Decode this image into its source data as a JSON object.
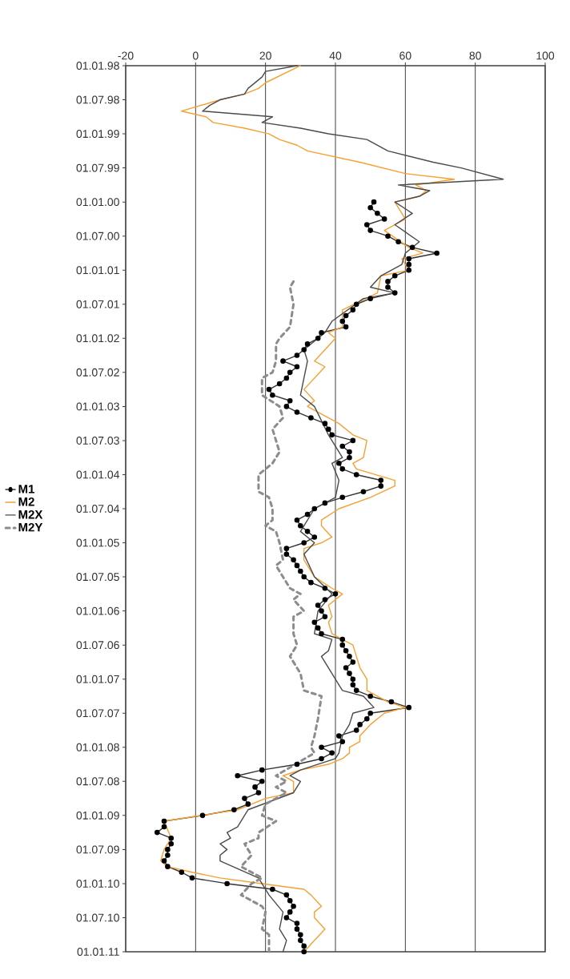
{
  "chart_data": {
    "type": "line",
    "x": [
      "2000-01",
      "2000-02",
      "2000-03",
      "2000-04",
      "2000-05",
      "2000-06",
      "2000-07",
      "2000-08",
      "2000-09",
      "2000-10",
      "2000-11",
      "2000-12",
      "2001-01",
      "2001-02",
      "2001-03",
      "2001-04",
      "2001-05",
      "2001-06",
      "2001-07",
      "2001-08",
      "2001-09",
      "2001-10",
      "2001-11",
      "2001-12",
      "2002-01",
      "2002-02",
      "2002-03",
      "2002-04",
      "2002-05",
      "2002-06",
      "2002-07",
      "2002-08",
      "2002-09",
      "2002-10",
      "2002-11",
      "2002-12",
      "2003-01",
      "2003-02",
      "2003-03",
      "2003-04",
      "2003-05",
      "2003-06",
      "2003-07",
      "2003-08",
      "2003-09",
      "2003-10",
      "2003-11",
      "2003-12",
      "2004-01",
      "2004-02",
      "2004-03",
      "2004-04",
      "2004-05",
      "2004-06",
      "2004-07",
      "2004-08",
      "2004-09",
      "2004-10",
      "2004-11",
      "2004-12",
      "2005-01",
      "2005-02",
      "2005-03",
      "2005-04",
      "2005-05",
      "2005-06",
      "2005-07",
      "2005-08",
      "2005-09",
      "2005-10",
      "2005-11",
      "2005-12",
      "2006-01",
      "2006-02",
      "2006-03",
      "2006-04",
      "2006-05",
      "2006-06",
      "2006-07",
      "2006-08",
      "2006-09",
      "2006-10",
      "2006-11",
      "2006-12",
      "2007-01",
      "2007-02",
      "2007-03",
      "2007-04",
      "2007-05",
      "2007-06",
      "2007-07",
      "2007-08",
      "2007-09",
      "2007-10",
      "2007-11",
      "2007-12",
      "2008-01",
      "2008-02",
      "2008-03",
      "2008-04",
      "2008-05",
      "2008-06",
      "2008-07",
      "2008-08",
      "2008-09",
      "2008-10",
      "2008-11",
      "2008-12",
      "2009-01",
      "2009-02",
      "2009-03",
      "2009-04",
      "2009-05",
      "2009-06",
      "2009-07",
      "2009-08",
      "2009-09",
      "2009-10",
      "2009-11",
      "2009-12",
      "2010-01",
      "2010-02",
      "2010-03",
      "2010-04",
      "2010-05",
      "2010-06",
      "2010-07",
      "2010-08",
      "2010-09",
      "2010-10",
      "2010-11",
      "2010-12",
      "2011-01"
    ],
    "series": [
      {
        "name": "M1",
        "color": "#333333",
        "marker": "circle",
        "values": [
          51,
          50,
          52,
          54,
          49,
          50,
          55,
          58,
          62,
          69,
          61,
          61,
          61,
          57,
          55,
          55,
          57,
          50,
          46,
          45,
          43,
          42,
          43,
          36,
          35,
          32,
          31,
          29,
          25,
          29,
          27,
          26,
          24,
          21,
          22,
          27,
          26,
          29,
          33,
          37,
          38,
          39,
          45,
          42,
          44,
          44,
          41,
          42,
          46,
          53,
          53,
          48,
          42,
          37,
          34,
          32,
          29,
          30,
          32,
          34,
          31,
          26,
          26,
          28,
          29,
          30,
          31,
          33,
          37,
          40,
          37,
          35,
          36,
          37,
          34,
          35,
          36,
          42,
          42,
          43,
          44,
          45,
          43,
          44,
          45,
          45,
          46,
          50,
          56,
          61,
          50,
          49,
          47,
          46,
          41,
          42,
          36,
          39,
          36,
          29,
          19,
          12,
          19,
          17,
          18,
          14,
          15,
          11,
          2,
          -9,
          -9,
          -11,
          -7,
          -7,
          -8,
          -8,
          -9,
          -8,
          -4,
          -1,
          9,
          22,
          26,
          27,
          28,
          27,
          26,
          29,
          29,
          30,
          30,
          31,
          31
        ]
      },
      {
        "name": "M2",
        "color": "#f5a033",
        "x": [
          "1998-01",
          "1998-04",
          "1998-05",
          "1998-06",
          "1998-07",
          "1998-09",
          "1998-10",
          "1998-11",
          "1998-12",
          "1999-01",
          "1999-02",
          "1999-03",
          "1999-04",
          "1999-06",
          "1999-08",
          "1999-09",
          "1999-10",
          "1999-11",
          "1999-12",
          "2000-01",
          "2000-04",
          "2000-06",
          "2000-09",
          "2000-10",
          "2000-11",
          "2001-01",
          "2001-02",
          "2001-05",
          "2001-08",
          "2001-10",
          "2001-11",
          "2001-12",
          "2002-01",
          "2002-03",
          "2002-05",
          "2002-06",
          "2002-10",
          "2002-12",
          "2003-01",
          "2003-04",
          "2003-06",
          "2003-07",
          "2003-10",
          "2003-11",
          "2003-12",
          "2004-02",
          "2004-03",
          "2004-05",
          "2004-07",
          "2004-09",
          "2004-10",
          "2004-12",
          "2005-01",
          "2005-02",
          "2005-04",
          "2005-07",
          "2005-09",
          "2005-10",
          "2005-12",
          "2006-02",
          "2006-03",
          "2006-05",
          "2006-06",
          "2006-07",
          "2006-09",
          "2006-11",
          "2007-01",
          "2007-03",
          "2007-05",
          "2007-06",
          "2007-07",
          "2007-09",
          "2007-11",
          "2007-12",
          "2008-01",
          "2008-02",
          "2008-03",
          "2008-04",
          "2008-05",
          "2008-06",
          "2008-07",
          "2008-09",
          "2008-10",
          "2008-12",
          "2009-02",
          "2009-05",
          "2009-07",
          "2009-09",
          "2009-10",
          "2009-11",
          "2009-12",
          "2010-01",
          "2010-02",
          "2010-03",
          "2010-05",
          "2010-06",
          "2010-07",
          "2010-09",
          "2010-11",
          "2011-01"
        ],
        "values": [
          30,
          20,
          18,
          14,
          7,
          -4,
          3,
          5,
          14,
          21,
          24,
          29,
          32,
          47,
          60,
          74,
          63,
          66,
          64,
          57,
          60,
          54,
          61,
          65,
          59,
          61,
          53,
          52,
          42,
          42,
          42,
          38,
          40,
          37,
          34,
          37,
          31,
          34,
          32,
          41,
          45,
          49,
          48,
          45,
          46,
          57,
          57,
          50,
          41,
          36,
          36,
          39,
          36,
          31,
          31,
          34,
          39,
          42,
          38,
          39,
          38,
          39,
          42,
          45,
          46,
          47,
          49,
          49,
          55,
          60,
          54,
          50,
          47,
          47,
          44,
          44,
          42,
          38,
          30,
          25,
          28,
          28,
          20,
          12,
          -9,
          -7,
          -9,
          -10,
          -8,
          -1,
          7,
          19,
          31,
          33,
          36,
          34,
          34,
          37,
          34,
          31
        ]
      },
      {
        "name": "M2X",
        "color": "#4a4a4a",
        "x": [
          "1998-01",
          "1998-02",
          "1998-03",
          "1998-04",
          "1998-05",
          "1998-06",
          "1998-07",
          "1998-08",
          "1998-09",
          "1998-10",
          "1998-11",
          "1998-12",
          "1999-01",
          "1999-02",
          "1999-04",
          "1999-06",
          "1999-07",
          "1999-09",
          "1999-10",
          "1999-11",
          "1999-12",
          "2000-01",
          "2000-03",
          "2000-05",
          "2000-08",
          "2000-10",
          "2000-12",
          "2001-02",
          "2001-04",
          "2001-05",
          "2001-06",
          "2001-10",
          "2001-12",
          "2002-03",
          "2002-05",
          "2002-11",
          "2003-01",
          "2003-06",
          "2003-10",
          "2003-11",
          "2004-02",
          "2004-05",
          "2004-07",
          "2004-11",
          "2005-01",
          "2005-03",
          "2005-07",
          "2005-10",
          "2006-01",
          "2006-05",
          "2006-06",
          "2006-08",
          "2006-09",
          "2007-02",
          "2007-03",
          "2007-04",
          "2007-06",
          "2007-07",
          "2007-09",
          "2007-11",
          "2008-02",
          "2008-03",
          "2008-05",
          "2008-06",
          "2008-07",
          "2008-09",
          "2008-12",
          "2009-03",
          "2009-04",
          "2009-05",
          "2009-06",
          "2009-07",
          "2009-08",
          "2009-09",
          "2009-12",
          "2010-03",
          "2010-06",
          "2010-09",
          "2010-11",
          "2011-01"
        ],
        "values": [
          29,
          20,
          19,
          17,
          15,
          14,
          7,
          4,
          2,
          22,
          19,
          30,
          38,
          49,
          55,
          68,
          76,
          88,
          58,
          67,
          64,
          57,
          62,
          57,
          64,
          60,
          59,
          53,
          50,
          57,
          48,
          39,
          37,
          31,
          32,
          30,
          34,
          38,
          42,
          39,
          41,
          40,
          34,
          30,
          34,
          31,
          34,
          39,
          35,
          34,
          39,
          38,
          36,
          41,
          42,
          48,
          51,
          45,
          44,
          42,
          41,
          40,
          30,
          27,
          30,
          28,
          15,
          12,
          9,
          10,
          7,
          9,
          7,
          7,
          18,
          21,
          25,
          24,
          26,
          25
        ]
      },
      {
        "name": "M2Y",
        "color": "#8c8c8c",
        "line_style": "dashed",
        "x": [
          "2001-03",
          "2001-04",
          "2001-07",
          "2001-11",
          "2002-01",
          "2002-02",
          "2002-05",
          "2002-07",
          "2002-08",
          "2002-11",
          "2003-01",
          "2003-03",
          "2003-05",
          "2003-09",
          "2003-11",
          "2004-01",
          "2004-04",
          "2004-05",
          "2004-07",
          "2004-09",
          "2004-10",
          "2004-11",
          "2005-01",
          "2005-04",
          "2005-05",
          "2005-07",
          "2005-09",
          "2005-10",
          "2005-11",
          "2006-01",
          "2006-02",
          "2006-05",
          "2006-07",
          "2006-09",
          "2006-12",
          "2007-03",
          "2007-04",
          "2007-08",
          "2007-11",
          "2008-01",
          "2008-02",
          "2008-06",
          "2008-07",
          "2008-08",
          "2008-09",
          "2008-11",
          "2009-01",
          "2009-02",
          "2009-04",
          "2009-05",
          "2009-06",
          "2009-08",
          "2009-10",
          "2009-12",
          "2010-01",
          "2010-03",
          "2010-04",
          "2010-05",
          "2010-06",
          "2010-09",
          "2010-10",
          "2011-01"
        ],
        "values": [
          28,
          27,
          28,
          27,
          24,
          23,
          23,
          22,
          19,
          19,
          24,
          25,
          22,
          24,
          22,
          18,
          18,
          21,
          22,
          22,
          20,
          23,
          24,
          25,
          23,
          25,
          27,
          30,
          28,
          31,
          28,
          28,
          29,
          27,
          30,
          31,
          36,
          35,
          34,
          33,
          34,
          23,
          26,
          23,
          26,
          20,
          19,
          23,
          18,
          18,
          14,
          16,
          13,
          19,
          16,
          13,
          16,
          19,
          20,
          19,
          21,
          21
        ]
      }
    ],
    "orientation": "horizontal",
    "ylim": [
      "2011-01-01",
      "1998-01-01"
    ],
    "yticks": [
      {
        "value": "1998-01-01",
        "label": "01.01.98"
      },
      {
        "value": "1998-07-01",
        "label": "01.07.98"
      },
      {
        "value": "1999-01-01",
        "label": "01.01.99"
      },
      {
        "value": "1999-07-01",
        "label": "01.07.99"
      },
      {
        "value": "2000-01-01",
        "label": "01.01.00"
      },
      {
        "value": "2000-07-01",
        "label": "01.07.00"
      },
      {
        "value": "2001-01-01",
        "label": "01.01.01"
      },
      {
        "value": "2001-07-01",
        "label": "01.07.01"
      },
      {
        "value": "2002-01-01",
        "label": "01.01.02"
      },
      {
        "value": "2002-07-01",
        "label": "01.07.02"
      },
      {
        "value": "2003-01-01",
        "label": "01.01.03"
      },
      {
        "value": "2003-07-01",
        "label": "01.07.03"
      },
      {
        "value": "2004-01-01",
        "label": "01.01.04"
      },
      {
        "value": "2004-07-01",
        "label": "01.07.04"
      },
      {
        "value": "2005-01-01",
        "label": "01.01.05"
      },
      {
        "value": "2005-07-01",
        "label": "01.07.05"
      },
      {
        "value": "2006-01-01",
        "label": "01.01.06"
      },
      {
        "value": "2006-07-01",
        "label": "01.07.06"
      },
      {
        "value": "2007-01-01",
        "label": "01.01.07"
      },
      {
        "value": "2007-07-01",
        "label": "01.07.07"
      },
      {
        "value": "2008-01-01",
        "label": "01.01.08"
      },
      {
        "value": "2008-07-01",
        "label": "01.07.08"
      },
      {
        "value": "2009-01-01",
        "label": "01.01.09"
      },
      {
        "value": "2009-07-01",
        "label": "01.07.09"
      },
      {
        "value": "2010-01-01",
        "label": "01.01.10"
      },
      {
        "value": "2010-07-01",
        "label": "01.07.10"
      },
      {
        "value": "2011-01-01",
        "label": "01.01.11"
      }
    ],
    "xlim": [
      -20,
      100
    ],
    "xticks": [
      -20,
      0,
      20,
      40,
      60,
      80,
      100
    ],
    "grid": "x",
    "legend": "left"
  }
}
